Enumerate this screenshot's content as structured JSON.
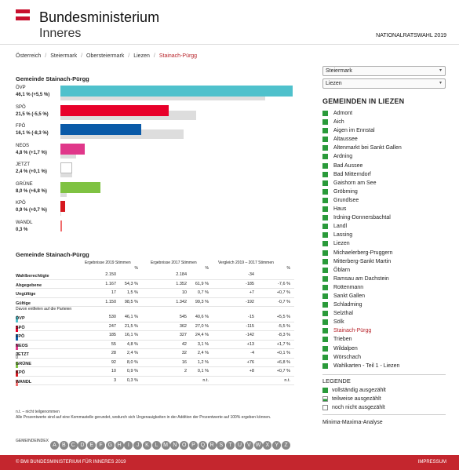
{
  "header": {
    "title_line1": "Bundesministerium",
    "title_line2": "Inneres",
    "election": "NATIONALRATSWAHL 2019",
    "flag_colors": [
      "#c8102e",
      "#ffffff",
      "#c8102e"
    ]
  },
  "breadcrumb": [
    "Österreich",
    "Steiermark",
    "Obersteiermark",
    "Liezen",
    "Stainach-Pürgg"
  ],
  "chart_title": "Gemeinde Stainach-Pürgg",
  "chart_data": {
    "type": "bar",
    "title": "Gemeinde Stainach-Pürgg",
    "categories": [
      "ÖVP",
      "SPÖ",
      "FPÖ",
      "NEOS",
      "JETZT",
      "GRÜNE",
      "KPÖ",
      "WANDL"
    ],
    "series": [
      {
        "values": [
          46.1,
          21.5,
          16.1,
          4.8,
          2.4,
          8.0,
          0.9,
          0.3
        ]
      },
      {
        "values": [
          40.6,
          27.0,
          24.4,
          3.1,
          2.4,
          1.2,
          0.1,
          0
        ]
      }
    ],
    "colors": [
      "#4fc1cc",
      "#e8002a",
      "#0a5aa8",
      "#e0378a",
      "#ffffff",
      "#7fc242",
      "#d6181f",
      "#f06c6c"
    ],
    "labels": [
      "46,1 % (+5,5 %)",
      "21,5 % (-5,5 %)",
      "16,1 % (-8,3 %)",
      "4,8 % (+1,7 %)",
      "2,4 % (+0,1 %)",
      "8,0 % (+6,8 %)",
      "0,9 % (+0,7 %)",
      "0,3 %"
    ],
    "xlim": [
      0,
      46.1
    ]
  },
  "table_title": "Gemeinde Stainach-Pürgg",
  "table": {
    "headers": {
      "h1": "Ergebnisse 2019 Stimmen",
      "h2": "%",
      "h3": "Ergebnisse 2017 Stimmen",
      "h4": "%",
      "h5": "Vergleich 2019 – 2017 Stimmen",
      "h6": "%"
    },
    "rows": [
      [
        "Wahlberechtigte",
        "2.150",
        "",
        "2.184",
        "",
        "-34",
        ""
      ],
      [
        "Abgegebene",
        "1.167",
        "54,3 %",
        "1.352",
        "61,9 %",
        "-185",
        "-7,6 %"
      ],
      [
        "Ungültige",
        "17",
        "1,5 %",
        "10",
        "0,7 %",
        "+7",
        "+0,7 %"
      ],
      [
        "Gültige",
        "1.150",
        "98,5 %",
        "1.342",
        "99,3 %",
        "-192",
        "-0,7 %"
      ]
    ],
    "davon": "Davon entfielen auf die Parteien",
    "party_rows": [
      [
        "ÖVP",
        "530",
        "46,1 %",
        "545",
        "40,6 %",
        "-15",
        "+5,5 %"
      ],
      [
        "SPÖ",
        "247",
        "21,5 %",
        "362",
        "27,0 %",
        "-115",
        "-5,5 %"
      ],
      [
        "FPÖ",
        "185",
        "16,1 %",
        "327",
        "24,4 %",
        "-142",
        "-8,3 %"
      ],
      [
        "NEOS",
        "55",
        "4,8 %",
        "42",
        "3,1 %",
        "+13",
        "+1,7 %"
      ],
      [
        "JETZT",
        "28",
        "2,4 %",
        "32",
        "2,4 %",
        "-4",
        "+0,1 %"
      ],
      [
        "GRÜNE",
        "92",
        "8,0 %",
        "16",
        "1,2 %",
        "+76",
        "+6,8 %"
      ],
      [
        "KPÖ",
        "10",
        "0,9 %",
        "2",
        "0,1 %",
        "+8",
        "+0,7 %"
      ],
      [
        "WANDL",
        "3",
        "0,3 %",
        "",
        "n.t.",
        "",
        "n.t."
      ]
    ]
  },
  "notes": {
    "nt": "n.t. – nicht teilgenommen",
    "rounding": "Alle Prozentwerte sind auf eine Kommastelle gerundet, wodurch sich Ungenauigkeiten in der Addition der Prozentwerte auf 100% ergeben können."
  },
  "gemeindeindex_label": "GEMEINDEINDEX",
  "letters": [
    "A",
    "B",
    "C",
    "D",
    "E",
    "F",
    "G",
    "H",
    "I",
    "J",
    "K",
    "L",
    "M",
    "N",
    "O",
    "P",
    "Q",
    "R",
    "S",
    "T",
    "U",
    "V",
    "W",
    "X",
    "Y",
    "Z"
  ],
  "sidebar": {
    "select_state": "Steiermark",
    "select_district": "Liezen",
    "heading": "GEMEINDEN IN LIEZEN",
    "municipalities": [
      "Admont",
      "Aich",
      "Aigen im Ennstal",
      "Altaussee",
      "Altenmarkt bei Sankt Gallen",
      "Ardning",
      "Bad Aussee",
      "Bad Mitterndorf",
      "Gaishorn am See",
      "Gröbming",
      "Grundlsee",
      "Haus",
      "Irdning-Donnersbachtal",
      "Landl",
      "Lassing",
      "Liezen",
      "Michaelerberg-Pruggern",
      "Mitterberg-Sankt Martin",
      "Öblarn",
      "Ramsau am Dachstein",
      "Rottenmann",
      "Sankt Gallen",
      "Schladming",
      "Selzthal",
      "Sölk",
      "Stainach-Pürgg",
      "Trieben",
      "Wildalpen",
      "Wörschach",
      "Wahlkarten - Teil 1 - Liezen"
    ],
    "current": "Stainach-Pürgg",
    "legend_heading": "LEGENDE",
    "legend": [
      "vollständig ausgezählt",
      "teilweise ausgezählt",
      "noch nicht ausgezählt"
    ],
    "minmax": "Minima-Maxima-Analyse"
  },
  "footer": {
    "copyright": "© BMI BUNDESMINISTERIUM FÜR INNERES 2019",
    "impressum": "IMPRESSUM"
  }
}
